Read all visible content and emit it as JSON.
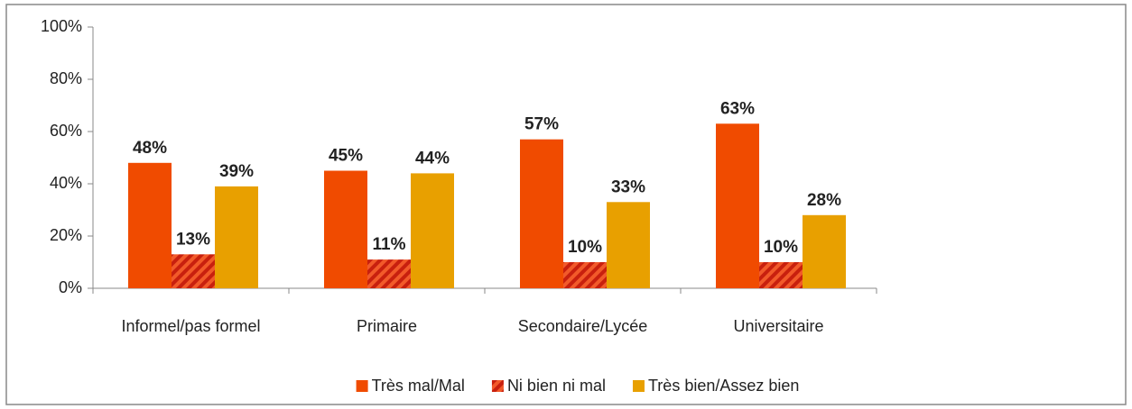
{
  "chart_data": {
    "type": "bar",
    "categories": [
      "Informel/pas formel",
      "Primaire",
      "Secondaire/Lycée",
      "Universitaire"
    ],
    "series": [
      {
        "name": "Très mal/Mal",
        "color": "#f04b00",
        "values": [
          48,
          45,
          57,
          63
        ],
        "value_labels": [
          "48%",
          "45%",
          "57%",
          "63%"
        ]
      },
      {
        "name": "Ni bien ni mal",
        "color": "#c8200e",
        "values": [
          13,
          11,
          10,
          10
        ],
        "value_labels": [
          "13%",
          "11%",
          "10%",
          "10%"
        ]
      },
      {
        "name": "Très bien/Assez bien",
        "color": "#e8a000",
        "values": [
          39,
          44,
          33,
          28
        ],
        "value_labels": [
          "39%",
          "44%",
          "33%",
          "28%"
        ]
      }
    ],
    "ylim": [
      0,
      100
    ],
    "yticks": [
      {
        "value": 0,
        "label": "0%"
      },
      {
        "value": 20,
        "label": "20%"
      },
      {
        "value": 40,
        "label": "40%"
      },
      {
        "value": 60,
        "label": "60%"
      },
      {
        "value": 80,
        "label": "80%"
      },
      {
        "value": 100,
        "label": "100%"
      }
    ],
    "legend": "bottom"
  }
}
